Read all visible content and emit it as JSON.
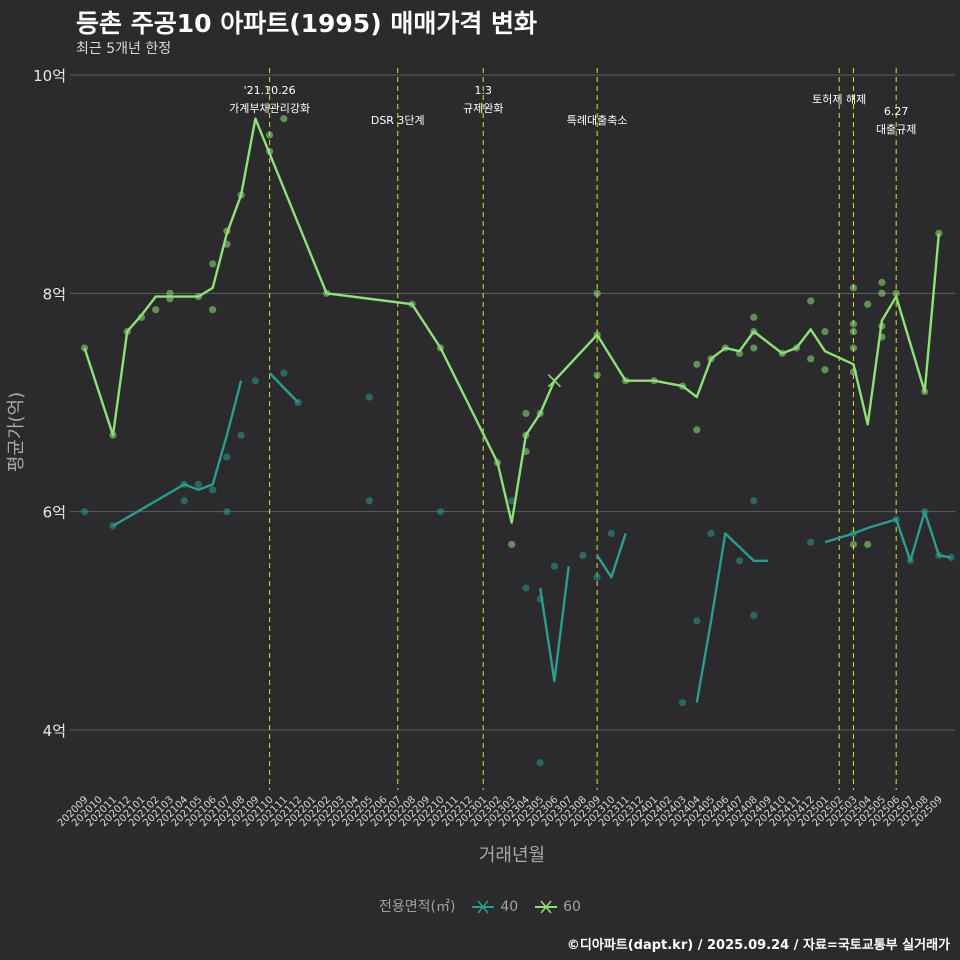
{
  "title": "등촌 주공10 아파트(1995) 매매가격 변화",
  "subtitle": "최근 5개년 한정",
  "caption": "©디아파트(dapt.kr) / 2025.09.24 / 자료=국토교통부 실거래가",
  "chart_data": {
    "type": "line",
    "xlabel": "거래년월",
    "ylabel": "평균가(억)",
    "ylim": [
      3.45,
      10.25
    ],
    "yticks": [
      4,
      6,
      8,
      10
    ],
    "ytick_labels": [
      "4억",
      "6억",
      "8억",
      "10억"
    ],
    "grid": true,
    "legend_title": "전용면적(㎡)",
    "legend_position": "bottom",
    "categories": [
      "202009",
      "202010",
      "202011",
      "202012",
      "202101",
      "202102",
      "202103",
      "202104",
      "202105",
      "202106",
      "202107",
      "202108",
      "202109",
      "202110",
      "202111",
      "202112",
      "202201",
      "202202",
      "202203",
      "202204",
      "202205",
      "202206",
      "202207",
      "202208",
      "202209",
      "202210",
      "202211",
      "202212",
      "202301",
      "202302",
      "202303",
      "202304",
      "202305",
      "202306",
      "202307",
      "202308",
      "202309",
      "202310",
      "202311",
      "202312",
      "202401",
      "202402",
      "202403",
      "202404",
      "202405",
      "202406",
      "202407",
      "202408",
      "202409",
      "202410",
      "202411",
      "202412",
      "202501",
      "202502",
      "202503",
      "202504",
      "202505",
      "202506",
      "202507",
      "202508",
      "202509"
    ],
    "events": [
      {
        "x": "202110",
        "label": "'21.10.26\n가계부채관리강화"
      },
      {
        "x": "202207",
        "label": "DSR 3단계"
      },
      {
        "x": "202301",
        "label": "1.3\n규제완화"
      },
      {
        "x": "202309",
        "label": "특례대출축소"
      },
      {
        "x": "202502",
        "label": "토허제 해제"
      },
      {
        "x": "202503",
        "label": ""
      },
      {
        "x": "202506",
        "label": "6.27\n대출규제"
      }
    ],
    "series": [
      {
        "name": "40",
        "color": "#2a9d8f",
        "line": [
          [
            "202009",
            6.0
          ],
          null,
          [
            "202011",
            5.87
          ],
          [
            "202104",
            6.25
          ],
          [
            "202105",
            6.2
          ],
          [
            "202106",
            6.25
          ],
          [
            "202107",
            6.7
          ],
          [
            "202108",
            7.2
          ],
          null,
          [
            "202110",
            7.27
          ],
          [
            "202112",
            7.0
          ],
          null,
          [
            "202305",
            5.3
          ],
          [
            "202306",
            4.45
          ],
          [
            "202307",
            5.5
          ],
          null,
          [
            "202309",
            5.6
          ],
          [
            "202310",
            5.4
          ],
          [
            "202311",
            5.8
          ],
          null,
          [
            "202404",
            4.25
          ],
          [
            "202405",
            5.0
          ],
          [
            "202406",
            5.8
          ],
          [
            "202408",
            5.55
          ],
          [
            "202409",
            5.55
          ],
          null,
          [
            "202501",
            5.72
          ],
          [
            "202503",
            5.8
          ],
          [
            "202504",
            5.85
          ],
          [
            "202506",
            5.93
          ],
          [
            "202507",
            5.55
          ],
          [
            "202508",
            6.0
          ],
          [
            "202509",
            5.6
          ],
          [
            "202510",
            5.58
          ]
        ],
        "points": [
          [
            "202009",
            6.0
          ],
          [
            "202011",
            5.87
          ],
          [
            "202104",
            6.1
          ],
          [
            "202104",
            6.25
          ],
          [
            "202105",
            6.25
          ],
          [
            "202106",
            6.2
          ],
          [
            "202107",
            6.0
          ],
          [
            "202107",
            6.5
          ],
          [
            "202108",
            6.7
          ],
          [
            "202109",
            7.2
          ],
          [
            "202111",
            7.27
          ],
          [
            "202112",
            7.0
          ],
          [
            "202205",
            7.05
          ],
          [
            "202205",
            6.1
          ],
          [
            "202210",
            6.0
          ],
          [
            "202303",
            6.1
          ],
          [
            "202304",
            5.3
          ],
          [
            "202305",
            5.2
          ],
          [
            "202305",
            3.7
          ],
          [
            "202306",
            5.5
          ],
          [
            "202308",
            5.6
          ],
          [
            "202309",
            5.4
          ],
          [
            "202310",
            5.8
          ],
          [
            "202403",
            4.25
          ],
          [
            "202404",
            5.0
          ],
          [
            "202405",
            5.8
          ],
          [
            "202407",
            5.55
          ],
          [
            "202408",
            6.1
          ],
          [
            "202408",
            5.05
          ],
          [
            "202412",
            5.72
          ],
          [
            "202503",
            5.8
          ],
          [
            "202506",
            5.93
          ],
          [
            "202507",
            5.55
          ],
          [
            "202508",
            6.0
          ],
          [
            "202509",
            5.6
          ],
          [
            "202510",
            5.58
          ]
        ]
      },
      {
        "name": "60",
        "color": "#90e07a",
        "line": [
          [
            "202009",
            7.5
          ],
          [
            "202011",
            6.7
          ],
          [
            "202012",
            7.65
          ],
          [
            "202101",
            7.8
          ],
          [
            "202102",
            7.97
          ],
          [
            "202105",
            7.97
          ],
          [
            "202106",
            8.05
          ],
          [
            "202107",
            8.55
          ],
          [
            "202108",
            8.9
          ],
          [
            "202109",
            9.6
          ],
          [
            "202202",
            8.0
          ],
          [
            "202208",
            7.9
          ],
          [
            "202210",
            7.5
          ],
          [
            "202302",
            6.45
          ],
          [
            "202303",
            5.9
          ],
          [
            "202304",
            6.7
          ],
          [
            "202305",
            6.9
          ],
          [
            "202306",
            7.2
          ],
          [
            "202309",
            7.62
          ],
          [
            "202311",
            7.2
          ],
          [
            "202401",
            7.2
          ],
          [
            "202403",
            7.15
          ],
          [
            "202404",
            7.05
          ],
          [
            "202405",
            7.4
          ],
          [
            "202406",
            7.5
          ],
          [
            "202407",
            7.47
          ],
          [
            "202408",
            7.65
          ],
          [
            "202410",
            7.45
          ],
          [
            "202411",
            7.5
          ],
          [
            "202412",
            7.67
          ],
          [
            "202501",
            7.47
          ],
          [
            "202503",
            7.35
          ],
          [
            "202504",
            6.8
          ],
          [
            "202505",
            7.75
          ],
          [
            "202506",
            7.97
          ],
          [
            "202508",
            7.1
          ],
          [
            "202509",
            8.55
          ]
        ],
        "points": [
          [
            "202009",
            7.5
          ],
          [
            "202011",
            6.7
          ],
          [
            "202012",
            7.65
          ],
          [
            "202101",
            7.78
          ],
          [
            "202102",
            7.85
          ],
          [
            "202103",
            7.95
          ],
          [
            "202103",
            8.0
          ],
          [
            "202105",
            7.97
          ],
          [
            "202106",
            7.85
          ],
          [
            "202106",
            8.27
          ],
          [
            "202107",
            8.45
          ],
          [
            "202107",
            8.57
          ],
          [
            "202108",
            8.9
          ],
          [
            "202110",
            9.3
          ],
          [
            "202110",
            9.45
          ],
          [
            "202111",
            9.6
          ],
          [
            "202202",
            8.0
          ],
          [
            "202208",
            7.9
          ],
          [
            "202210",
            7.5
          ],
          [
            "202302",
            6.45
          ],
          [
            "202303",
            5.7
          ],
          [
            "202304",
            6.9
          ],
          [
            "202304",
            6.55
          ],
          [
            "202304",
            6.7
          ],
          [
            "202305",
            6.9
          ],
          [
            "202309",
            7.25
          ],
          [
            "202309",
            8.0
          ],
          [
            "202309",
            7.62
          ],
          [
            "202311",
            7.2
          ],
          [
            "202401",
            7.2
          ],
          [
            "202403",
            7.15
          ],
          [
            "202404",
            7.35
          ],
          [
            "202404",
            6.75
          ],
          [
            "202405",
            7.4
          ],
          [
            "202406",
            7.5
          ],
          [
            "202407",
            7.45
          ],
          [
            "202408",
            7.5
          ],
          [
            "202408",
            7.65
          ],
          [
            "202408",
            7.78
          ],
          [
            "202410",
            7.45
          ],
          [
            "202411",
            7.5
          ],
          [
            "202412",
            7.93
          ],
          [
            "202412",
            7.4
          ],
          [
            "202501",
            7.65
          ],
          [
            "202501",
            7.3
          ],
          [
            "202503",
            8.05
          ],
          [
            "202503",
            7.72
          ],
          [
            "202503",
            7.65
          ],
          [
            "202503",
            7.5
          ],
          [
            "202503",
            7.28
          ],
          [
            "202503",
            5.7
          ],
          [
            "202504",
            7.9
          ],
          [
            "202504",
            5.7
          ],
          [
            "202505",
            8.1
          ],
          [
            "202505",
            8.0
          ],
          [
            "202505",
            7.7
          ],
          [
            "202505",
            7.6
          ],
          [
            "202506",
            8.0
          ],
          [
            "202508",
            7.1
          ],
          [
            "202509",
            8.55
          ]
        ]
      }
    ],
    "crossed_points": [
      [
        "202306",
        7.2,
        "60"
      ]
    ]
  }
}
